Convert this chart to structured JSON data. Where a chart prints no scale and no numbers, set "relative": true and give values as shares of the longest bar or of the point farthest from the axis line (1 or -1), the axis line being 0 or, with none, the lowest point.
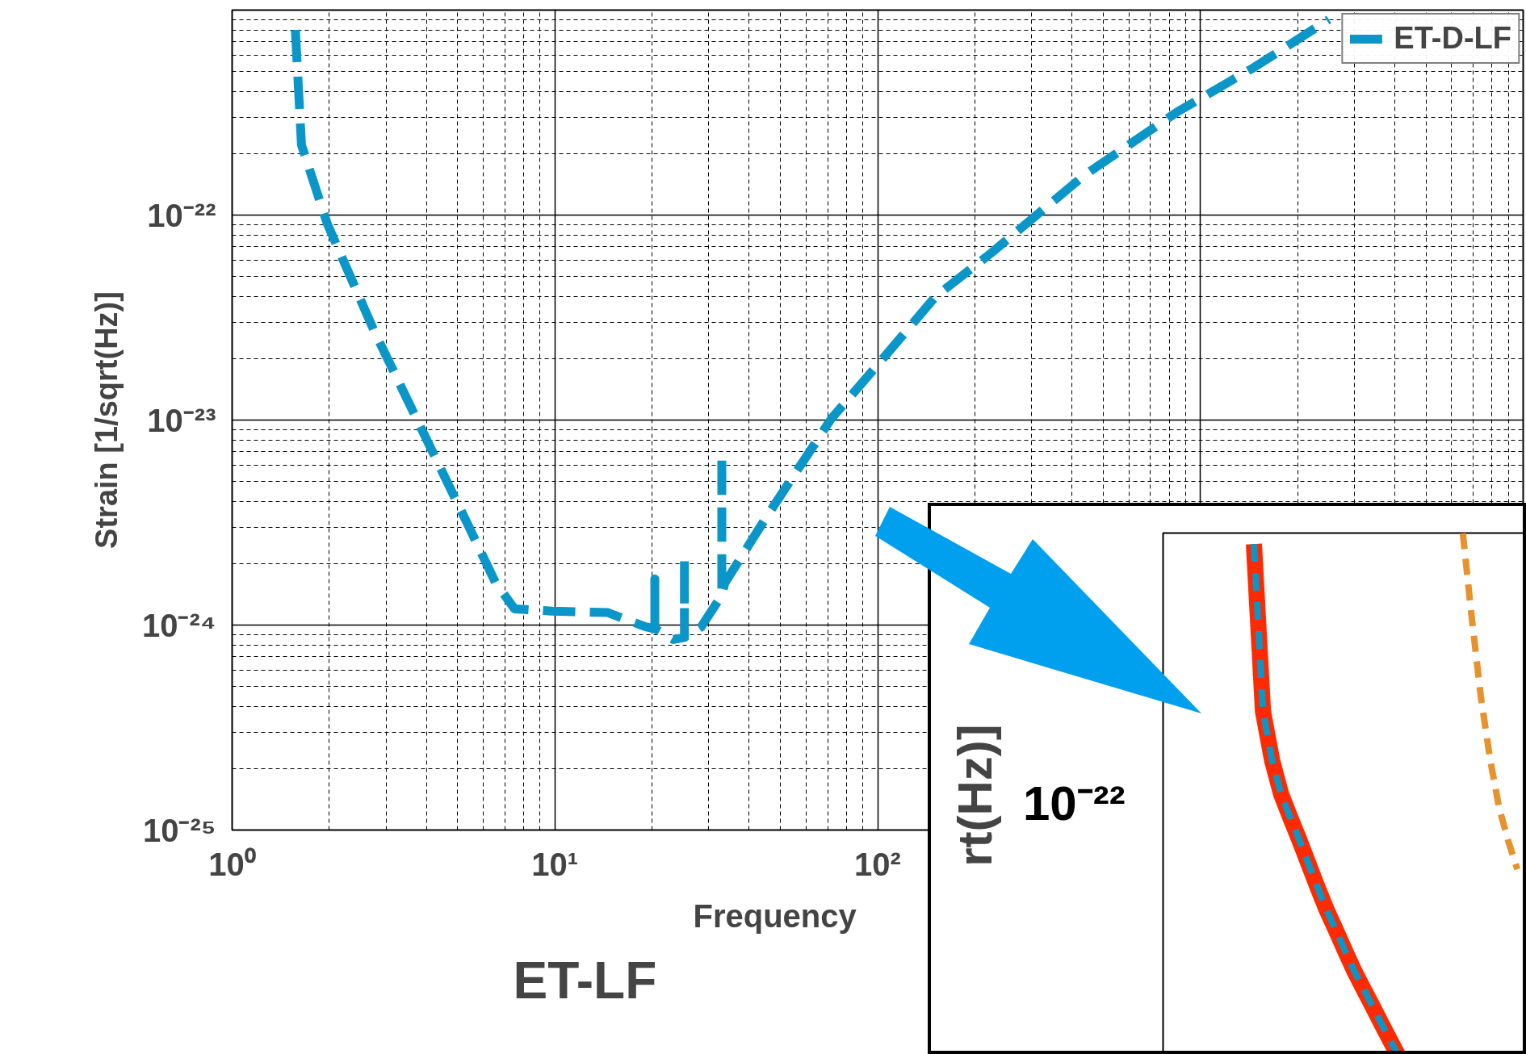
{
  "chart_data": [
    {
      "type": "line",
      "title": "ET-LF",
      "xlabel": "Frequency",
      "ylabel": "Strain [1/sqrt(Hz)]",
      "log": "xy",
      "grid": true,
      "legend": "top right",
      "line_style": "dashed",
      "xlim": [
        1,
        10000
      ],
      "ylim": [
        1e-25,
        1e-21
      ],
      "xticks": [
        {
          "value": 1,
          "label": "10⁰"
        },
        {
          "value": 10,
          "label": "10¹"
        },
        {
          "value": 100,
          "label": "10²"
        },
        {
          "value": 1000,
          "label": null
        }
      ],
      "yticks": [
        {
          "value": 1e-25,
          "label": "10⁻²⁵"
        },
        {
          "value": 1e-24,
          "label": "10⁻²⁴"
        },
        {
          "value": 1e-23,
          "label": "10⁻²³"
        },
        {
          "value": 1e-22,
          "label": "10⁻²²"
        }
      ],
      "series": [
        {
          "name": "ET-D-LF",
          "color": "#0a96c8",
          "x": [
            1.57,
            1.64,
            1.97,
            2.76,
            3.98,
            5.37,
            6.56,
            7.5,
            9.8,
            14.6,
            19.1,
            20.4,
            20.4,
            20.4,
            23.3,
            25.2,
            25.2,
            25.2,
            28.4,
            32.9,
            32.9,
            32.9,
            33.6,
            45.4,
            72,
            100,
            151,
            224,
            436,
            851,
            1450,
            2500
          ],
          "values": [
            8e-22,
            2.2e-22,
            9.1e-23,
            2.7e-23,
            8.2e-24,
            3.1e-24,
            1.6e-24,
            1.2e-24,
            1.17e-24,
            1.15e-24,
            9.8e-25,
            9.6e-25,
            1.68e-24,
            9.6e-25,
            8.5e-25,
            8.7e-25,
            2.1e-24,
            8.7e-25,
            9.8e-25,
            1.4e-24,
            6.8e-24,
            1.4e-24,
            1.6e-24,
            3.4e-24,
            1.02e-23,
            1.86e-23,
            4e-23,
            6.5e-23,
            1.56e-22,
            3.2e-22,
            5.2e-22,
            9e-22
          ]
        }
      ]
    },
    {
      "type": "line",
      "ylabel": "rt(Hz)]",
      "relative": true,
      "categories": [
        null,
        null,
        null,
        null,
        null,
        null,
        null,
        null,
        null,
        null,
        null,
        null,
        null,
        null,
        null,
        null,
        null,
        null,
        null,
        null,
        null,
        null,
        null,
        null,
        null,
        null,
        null,
        null,
        null,
        null,
        null,
        null,
        null,
        null,
        null,
        null,
        null,
        null,
        null,
        null,
        null
      ],
      "annotations": [
        "10⁻²²"
      ],
      "series": [
        {
          "color": "#ff2a00",
          "line_style": "solid",
          "values": [
            null,
            null,
            null,
            null,
            null,
            null,
            null,
            null,
            null,
            null,
            0.979,
            0.66,
            0.567,
            0.502,
            0.458,
            0.415,
            0.37,
            0.325,
            0.282,
            0.244,
            0.205,
            0.167,
            0.133,
            0.1,
            0.066,
            0.033,
            0,
            null,
            null,
            null,
            null,
            null,
            null,
            null,
            null,
            null,
            null,
            null,
            null,
            null,
            null
          ]
        },
        {
          "color": "#0a96c8",
          "line_style": "dashed",
          "values": [
            null,
            null,
            null,
            null,
            null,
            null,
            null,
            null,
            null,
            null,
            0.979,
            0.66,
            0.567,
            0.502,
            0.458,
            0.415,
            0.37,
            0.325,
            0.282,
            0.244,
            0.205,
            0.167,
            0.133,
            0.1,
            0.066,
            0.033,
            0,
            null,
            null,
            null,
            null,
            null,
            null,
            null,
            null,
            null,
            null,
            null,
            null,
            null,
            null
          ]
        },
        {
          "color": "#e8922e",
          "line_style": "dashed",
          "values": [
            null,
            null,
            null,
            null,
            null,
            null,
            null,
            null,
            null,
            null,
            null,
            null,
            null,
            null,
            null,
            null,
            null,
            null,
            null,
            null,
            null,
            null,
            null,
            null,
            null,
            null,
            null,
            null,
            null,
            null,
            null,
            null,
            null,
            1,
            0.836,
            0.686,
            0.569,
            0.476,
            0.413,
            0.359,
            null
          ]
        }
      ]
    }
  ]
}
